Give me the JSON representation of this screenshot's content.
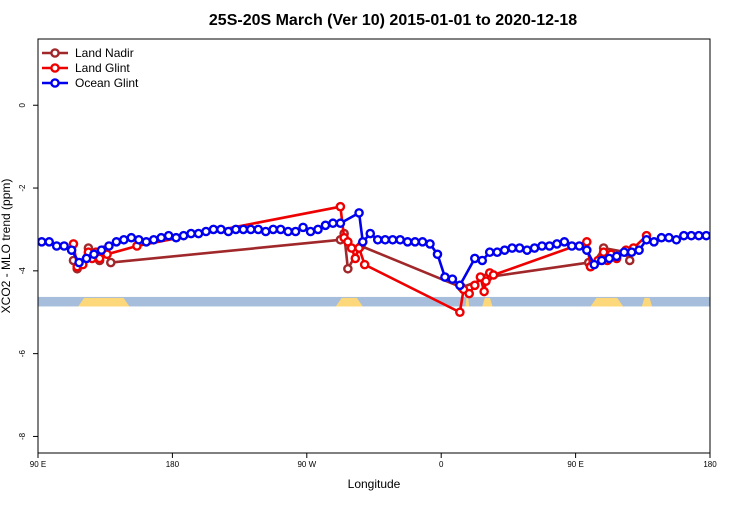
{
  "chart_data": {
    "type": "line",
    "title": "25S-20S March (Ver 10)   2015-01-01 to 2020-12-18",
    "xlabel": "Longitude",
    "ylabel": "XCO2 - MLO trend (ppm)",
    "xlim": [
      90,
      450
    ],
    "ylim": [
      -8.4,
      1.6
    ],
    "x_ticks": [
      {
        "value": 90,
        "label": "90 E"
      },
      {
        "value": 162,
        "label": "180"
      },
      {
        "value": 234,
        "label": "90 W"
      },
      {
        "value": 306,
        "label": "0"
      },
      {
        "value": 378,
        "label": "90 E"
      },
      {
        "value": 450,
        "label": "180"
      }
    ],
    "y_ticks": [
      {
        "value": 0,
        "label": "0"
      },
      {
        "value": -2,
        "label": "-2"
      },
      {
        "value": -4,
        "label": "-4"
      },
      {
        "value": -6,
        "label": "-6"
      },
      {
        "value": -8,
        "label": "-8"
      }
    ],
    "legend_position": "top-left",
    "grid": false,
    "land_ocean_strip": {
      "y_range": [
        -4.86,
        -4.63
      ],
      "ocean_color": "#a6bddb",
      "land_color": "#fdd87a",
      "land_segments": [
        [
          111.5,
          139
        ],
        [
          249.5,
          264
        ],
        [
          319,
          321
        ],
        [
          328,
          333.5
        ],
        [
          386,
          403.5
        ],
        [
          413.5,
          419
        ]
      ]
    },
    "series": [
      {
        "name": "Land Nadir",
        "color": "#a0282a",
        "x": [
          109,
          111,
          117,
          123,
          125,
          129,
          252,
          254,
          256,
          263,
          317,
          329,
          331,
          385,
          386,
          393,
          405,
          407
        ],
        "y": [
          -3.75,
          -3.95,
          -3.45,
          -3.75,
          -3.5,
          -3.8,
          -3.25,
          -3.1,
          -3.95,
          -3.4,
          -4.4,
          -4.2,
          -4.15,
          -3.8,
          -3.9,
          -3.45,
          -3.55,
          -3.75
        ]
      },
      {
        "name": "Land Glint",
        "color": "#ee0000",
        "x": [
          109,
          111,
          114,
          117,
          119,
          121,
          123,
          125,
          127,
          143,
          252,
          254,
          256,
          258,
          260,
          262,
          265,
          316,
          318,
          321,
          324,
          327,
          329,
          330,
          332,
          334,
          384,
          386,
          390,
          393,
          395,
          397,
          400,
          405,
          409,
          416
        ],
        "y": [
          -3.35,
          -3.9,
          -3.85,
          -3.55,
          -3.7,
          -3.55,
          -3.7,
          -3.5,
          -3.6,
          -3.4,
          -2.45,
          -3.2,
          -3.3,
          -3.45,
          -3.7,
          -3.45,
          -3.85,
          -5.0,
          -4.45,
          -4.55,
          -4.35,
          -4.15,
          -4.5,
          -4.25,
          -4.05,
          -4.1,
          -3.3,
          -3.9,
          -3.75,
          -3.55,
          -3.75,
          -3.6,
          -3.7,
          -3.5,
          -3.45,
          -3.15
        ]
      },
      {
        "name": "Ocean Glint",
        "color": "#0000ee",
        "x": [
          92,
          96,
          100,
          104,
          108,
          112,
          116,
          120,
          124,
          128,
          132,
          136,
          140,
          144,
          148,
          152,
          156,
          160,
          164,
          168,
          172,
          176,
          180,
          184,
          188,
          192,
          196,
          200,
          204,
          208,
          212,
          216,
          220,
          224,
          228,
          232,
          236,
          240,
          244,
          248,
          252,
          262,
          264,
          268,
          272,
          276,
          280,
          284,
          288,
          292,
          296,
          300,
          304,
          308,
          312,
          316,
          324,
          328,
          332,
          336,
          340,
          344,
          348,
          352,
          356,
          360,
          364,
          368,
          372,
          376,
          380,
          384,
          388,
          392,
          396,
          400,
          404,
          408,
          412,
          416,
          420,
          424,
          428,
          432,
          436,
          440,
          444,
          448
        ],
        "y": [
          -3.3,
          -3.3,
          -3.4,
          -3.4,
          -3.5,
          -3.8,
          -3.7,
          -3.6,
          -3.5,
          -3.4,
          -3.3,
          -3.25,
          -3.2,
          -3.25,
          -3.3,
          -3.25,
          -3.2,
          -3.15,
          -3.2,
          -3.15,
          -3.1,
          -3.1,
          -3.05,
          -3.0,
          -3.0,
          -3.05,
          -3.0,
          -3.0,
          -3.0,
          -3.0,
          -3.05,
          -3.0,
          -3.0,
          -3.05,
          -3.05,
          -2.95,
          -3.05,
          -3.0,
          -2.9,
          -2.85,
          -2.85,
          -2.6,
          -3.3,
          -3.1,
          -3.25,
          -3.25,
          -3.25,
          -3.25,
          -3.3,
          -3.3,
          -3.3,
          -3.35,
          -3.6,
          -4.15,
          -4.2,
          -4.35,
          -3.7,
          -3.75,
          -3.55,
          -3.55,
          -3.5,
          -3.45,
          -3.45,
          -3.5,
          -3.45,
          -3.4,
          -3.4,
          -3.35,
          -3.3,
          -3.4,
          -3.4,
          -3.5,
          -3.85,
          -3.75,
          -3.7,
          -3.65,
          -3.55,
          -3.55,
          -3.5,
          -3.25,
          -3.3,
          -3.2,
          -3.2,
          -3.25,
          -3.15,
          -3.15,
          -3.15,
          -3.15
        ]
      }
    ]
  }
}
